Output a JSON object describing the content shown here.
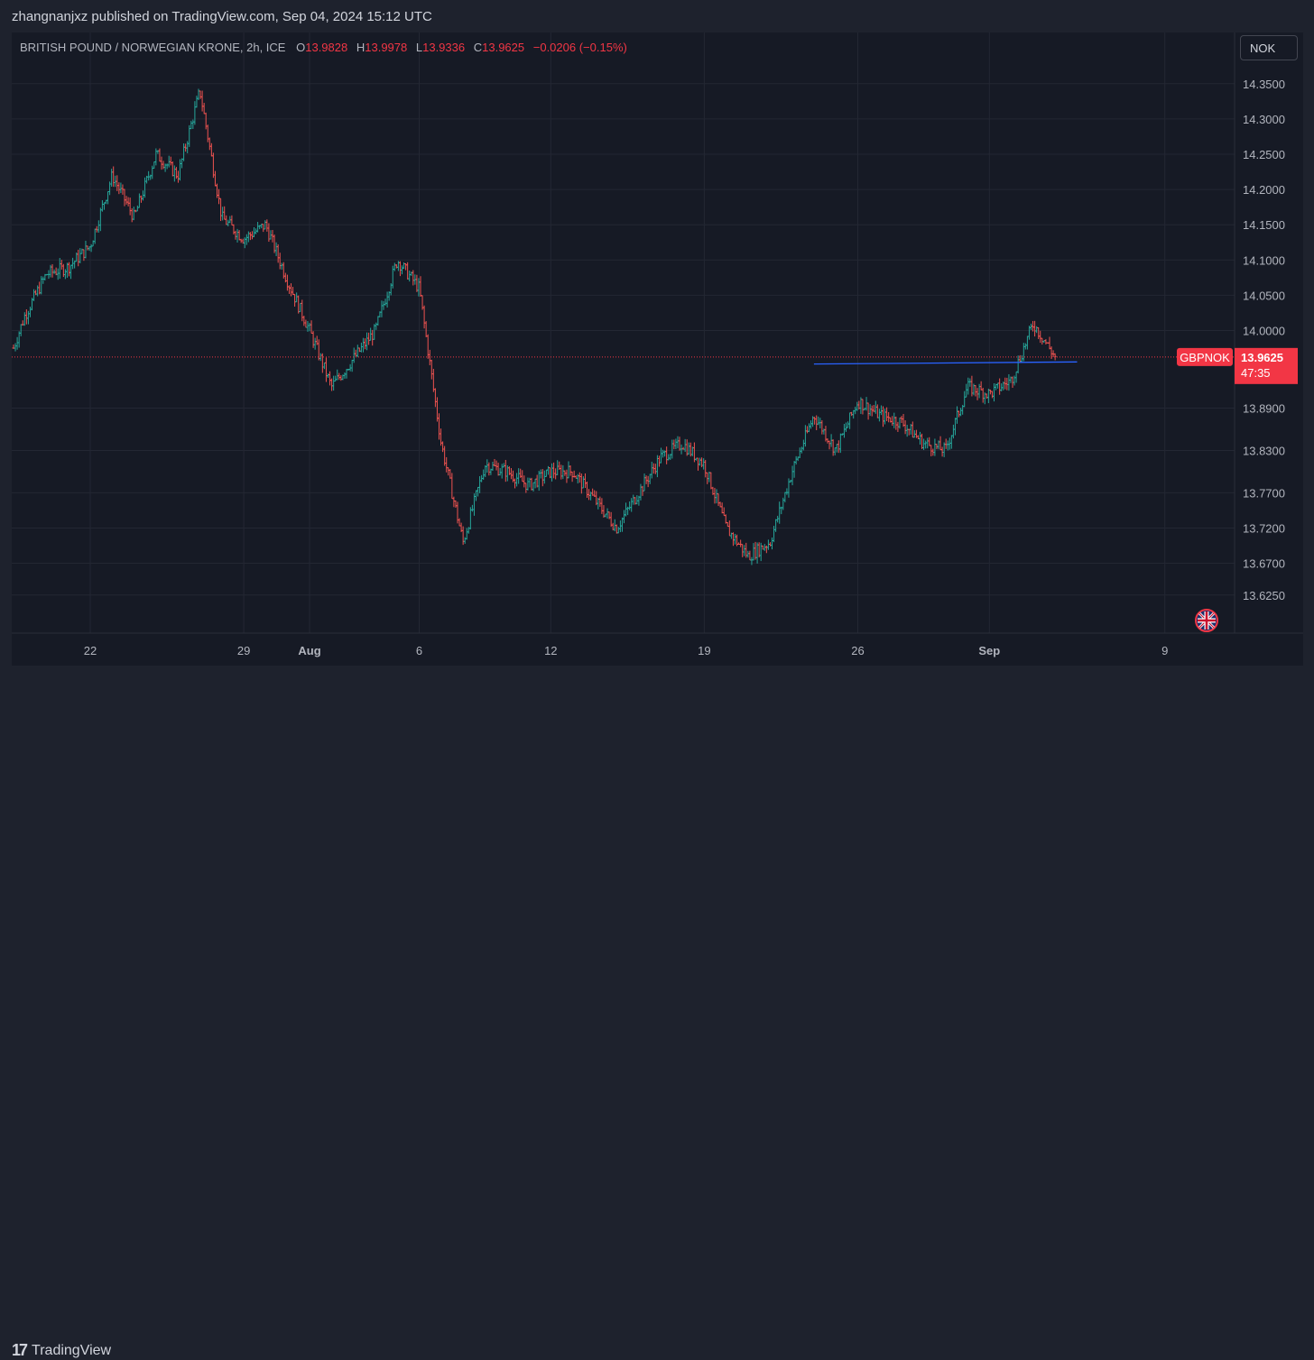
{
  "publisher_line": "zhangnanjxz published on TradingView.com, Sep 04, 2024 15:12 UTC",
  "legend": {
    "symbol": "BRITISH POUND / NORWEGIAN KRONE, 2h, ICE",
    "o_label": "O",
    "o_value": "13.9828",
    "h_label": "H",
    "h_value": "13.9978",
    "l_label": "L",
    "l_value": "13.9336",
    "c_label": "C",
    "c_value": "13.9625",
    "change": "−0.0206 (−0.15%)"
  },
  "currency_button": "NOK",
  "price_tag": {
    "symbol": "GBPNOK",
    "price": "13.9625",
    "countdown": "47:35"
  },
  "brand": "TradingView",
  "icons": {
    "flag": "uk-flag-icon",
    "logo": "tradingview-logo-icon"
  },
  "colors": {
    "up": "#26a69a",
    "down": "#ef5350",
    "trendline": "#2962ff",
    "last_price": "#f23645"
  },
  "chart_data": {
    "type": "candlestick",
    "title": "BRITISH POUND / NORWEGIAN KRONE, 2h, ICE",
    "x_tick_labels": [
      "22",
      "29",
      "Aug",
      "6",
      "12",
      "19",
      "26",
      "Sep",
      "9"
    ],
    "y_tick_labels": [
      "14.3500",
      "14.3000",
      "14.2500",
      "14.2000",
      "14.1500",
      "14.1000",
      "14.0500",
      "14.0000",
      "13.8900",
      "13.8300",
      "13.7700",
      "13.7200",
      "13.6700",
      "13.6250"
    ],
    "ylim": [
      13.605,
      14.38
    ],
    "last_price": 13.9625,
    "trendline": {
      "from": [
        "Aug 24",
        13.9525
      ],
      "to": [
        "Sep 05",
        13.9555
      ]
    },
    "path": [
      [
        "Jul 17",
        14.01
      ],
      [
        "Jul 18",
        13.93
      ],
      [
        "Jul 19",
        14.02
      ],
      [
        "Jul 20",
        14.08
      ],
      [
        "Jul 21",
        14.09
      ],
      [
        "Jul 22",
        14.12
      ],
      [
        "Jul 23",
        14.22
      ],
      [
        "Jul 24",
        14.16
      ],
      [
        "Jul 25",
        14.25
      ],
      [
        "Jul 26",
        14.22
      ],
      [
        "Jul 27",
        14.34
      ],
      [
        "Jul 28",
        14.16
      ],
      [
        "Jul 29",
        14.13
      ],
      [
        "Jul 30",
        14.15
      ],
      [
        "Jul 31",
        14.07
      ],
      [
        "Aug 01",
        14.0
      ],
      [
        "Aug 02",
        13.92
      ],
      [
        "Aug 03",
        13.96
      ],
      [
        "Aug 04",
        14.0
      ],
      [
        "Aug 05",
        14.1
      ],
      [
        "Aug 06",
        14.06
      ],
      [
        "Aug 07",
        13.84
      ],
      [
        "Aug 08",
        13.7
      ],
      [
        "Aug 09",
        13.81
      ],
      [
        "Aug 10",
        13.8
      ],
      [
        "Aug 11",
        13.78
      ],
      [
        "Aug 12",
        13.8
      ],
      [
        "Aug 13",
        13.8
      ],
      [
        "Aug 14",
        13.76
      ],
      [
        "Aug 15",
        13.72
      ],
      [
        "Aug 16",
        13.77
      ],
      [
        "Aug 17",
        13.82
      ],
      [
        "Aug 18",
        13.84
      ],
      [
        "Aug 19",
        13.81
      ],
      [
        "Aug 20",
        13.72
      ],
      [
        "Aug 21",
        13.68
      ],
      [
        "Aug 22",
        13.7
      ],
      [
        "Aug 23",
        13.8
      ],
      [
        "Aug 24",
        13.88
      ],
      [
        "Aug 25",
        13.83
      ],
      [
        "Aug 26",
        13.9
      ],
      [
        "Aug 27",
        13.88
      ],
      [
        "Aug 28",
        13.87
      ],
      [
        "Aug 29",
        13.84
      ],
      [
        "Aug 30",
        13.83
      ],
      [
        "Aug 31",
        13.92
      ],
      [
        "Sep 01",
        13.91
      ],
      [
        "Sep 02",
        13.93
      ],
      [
        "Sep 03",
        14.01
      ],
      [
        "Sep 04",
        13.9625
      ]
    ]
  }
}
